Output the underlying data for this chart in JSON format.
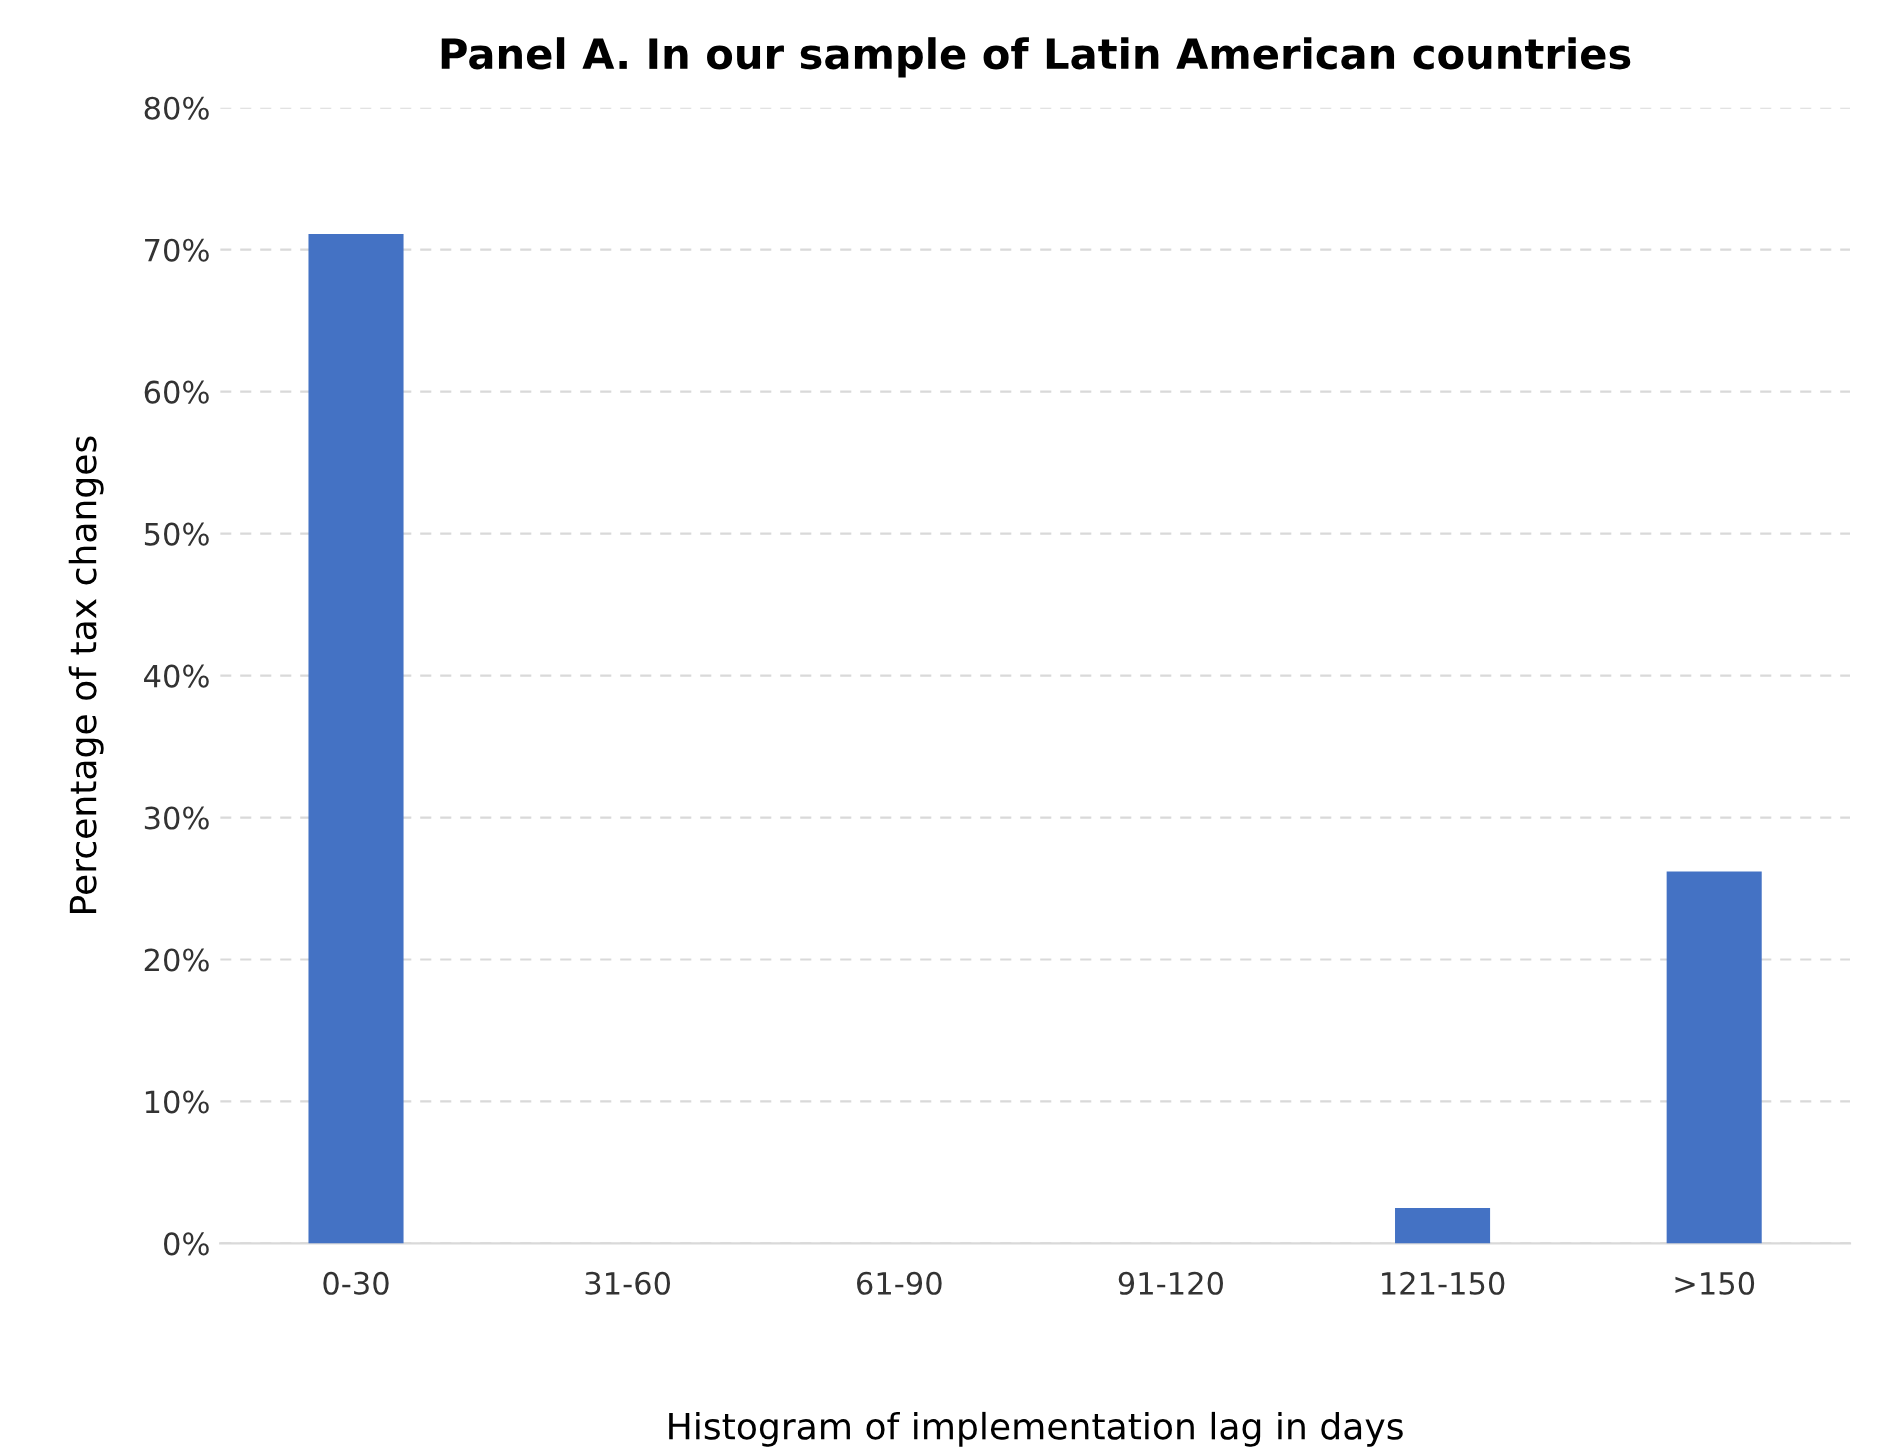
{
  "chart_data": {
    "type": "bar",
    "title": "Panel A. In our sample of Latin American countries",
    "xlabel": "Histogram of implementation lag in days",
    "ylabel": "Percentage of tax changes",
    "categories": [
      "0-30",
      "31-60",
      "61-90",
      "91-120",
      "121-150",
      ">150"
    ],
    "values": [
      71.1,
      0,
      0,
      0,
      2.5,
      26.2
    ],
    "color": "#4472c4",
    "ylim": [
      0,
      80
    ],
    "yticks": [
      {
        "value": 0,
        "label": "0%"
      },
      {
        "value": 10,
        "label": "10%"
      },
      {
        "value": 20,
        "label": "20%"
      },
      {
        "value": 30,
        "label": "30%"
      },
      {
        "value": 40,
        "label": "40%"
      },
      {
        "value": 50,
        "label": "50%"
      },
      {
        "value": 60,
        "label": "60%"
      },
      {
        "value": 70,
        "label": "70%"
      },
      {
        "value": 80,
        "label": "80%"
      }
    ],
    "grid": "y"
  }
}
